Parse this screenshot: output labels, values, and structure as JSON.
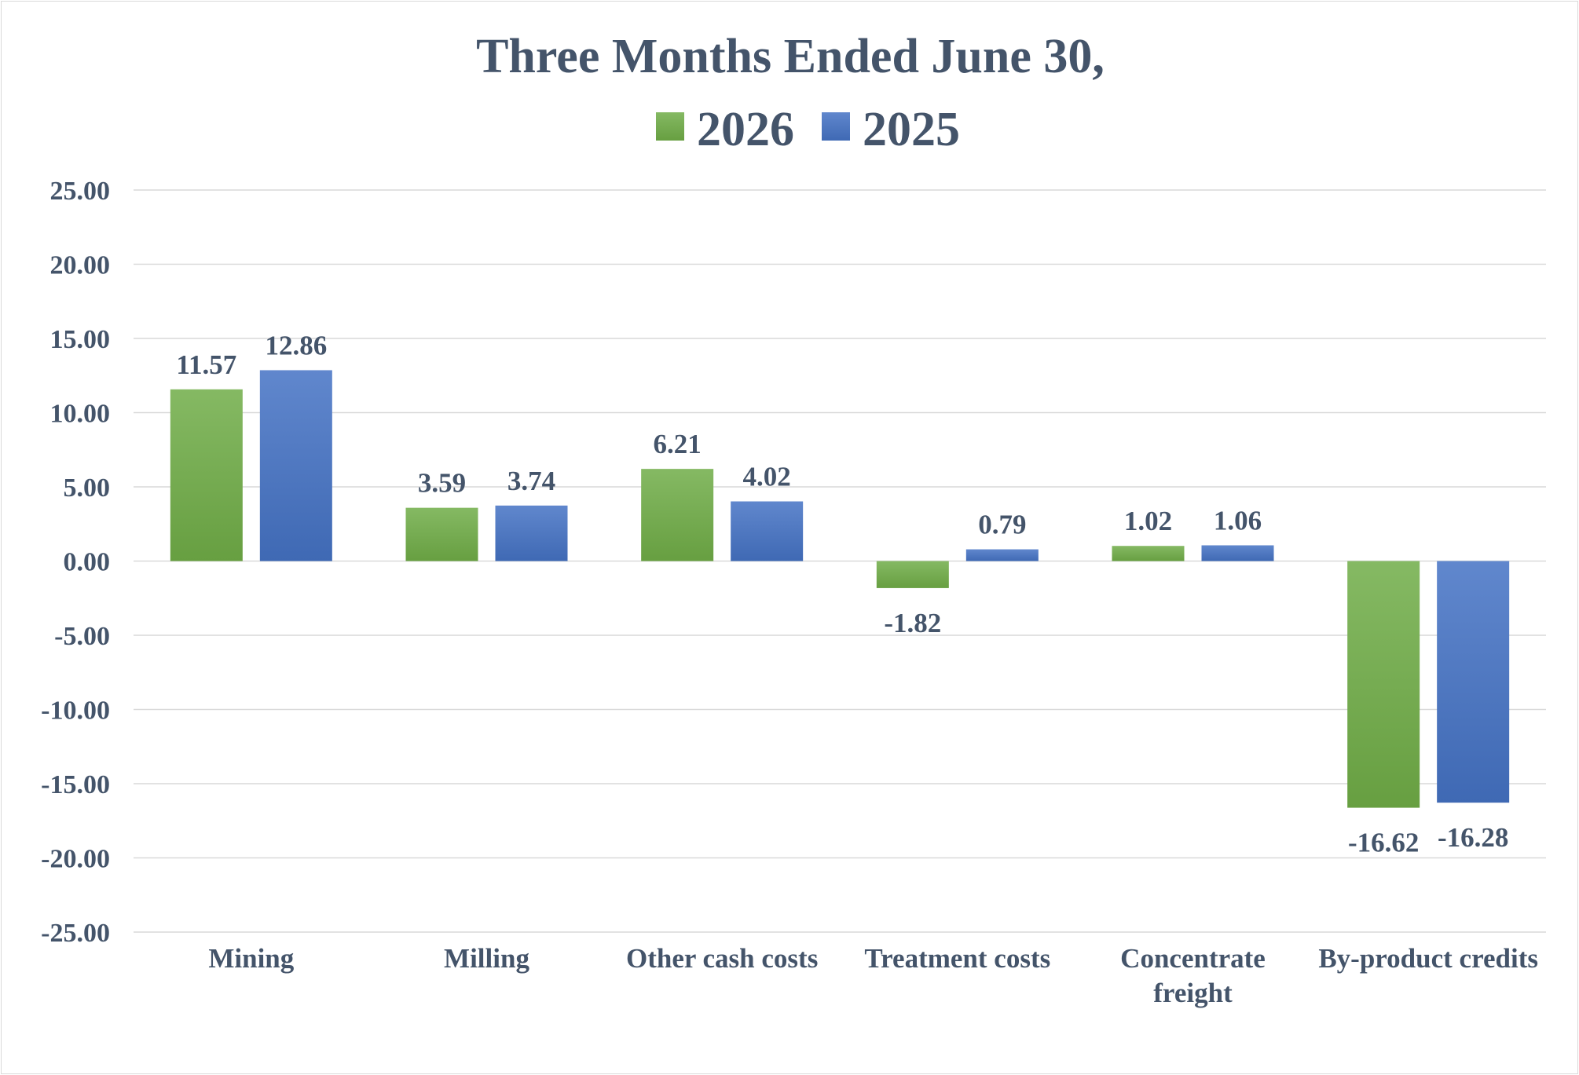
{
  "chart_data": {
    "type": "bar",
    "title": "Three Months Ended June 30,",
    "categories": [
      "Mining",
      "Milling",
      "Other cash costs",
      "Treatment costs",
      "Concentrate freight",
      "By-product credits"
    ],
    "category_lines": [
      [
        "Mining"
      ],
      [
        "Milling"
      ],
      [
        "Other cash costs"
      ],
      [
        "Treatment costs"
      ],
      [
        "Concentrate",
        "freight"
      ],
      [
        "By-product credits"
      ]
    ],
    "series": [
      {
        "name": "2026",
        "values": [
          11.57,
          3.59,
          6.21,
          -1.82,
          1.02,
          -16.62
        ],
        "labels": [
          "11.57",
          "3.59",
          "6.21",
          "-1.82",
          "1.02",
          "-16.62"
        ],
        "color": "#70ad47"
      },
      {
        "name": "2025",
        "values": [
          12.86,
          3.74,
          4.02,
          0.79,
          1.06,
          -16.28
        ],
        "labels": [
          "12.86",
          "3.74",
          "4.02",
          "0.79",
          "1.06",
          "-16.28"
        ],
        "color": "#4472c4"
      }
    ],
    "ylim": [
      -25,
      25
    ],
    "yticks": [
      25,
      20,
      15,
      10,
      5,
      0,
      -5,
      -10,
      -15,
      -20,
      -25
    ],
    "ytick_labels": [
      "25.00",
      "20.00",
      "15.00",
      "10.00",
      "5.00",
      "0.00",
      "-5.00",
      "-10.00",
      "-15.00",
      "-20.00",
      "-25.00"
    ],
    "xlabel": "",
    "ylabel": "",
    "grid": true,
    "legend_position": "top"
  }
}
